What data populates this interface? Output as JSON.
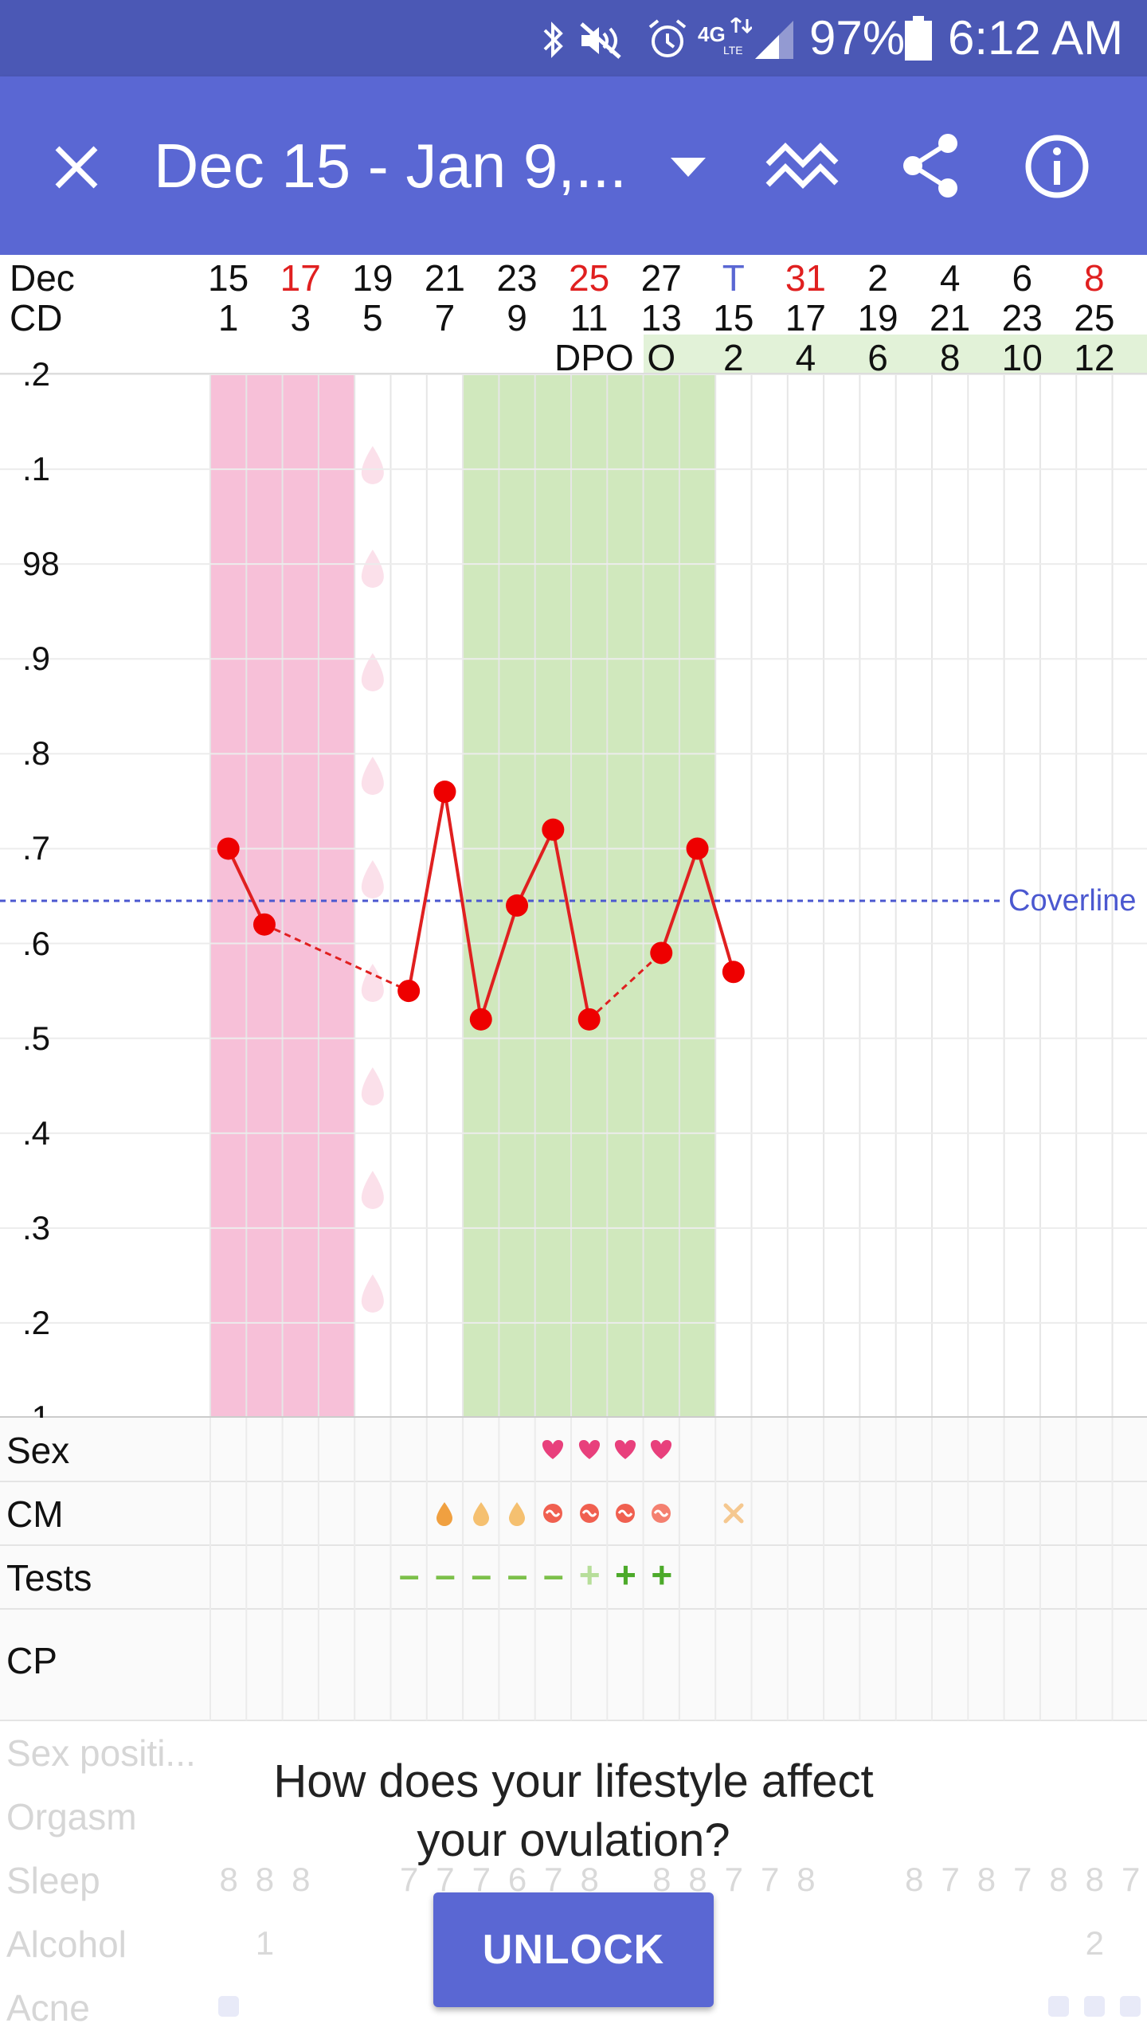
{
  "status_bar": {
    "battery": "97%",
    "time": "6:12 AM",
    "icons": [
      "bluetooth-icon",
      "mute-icon",
      "alarm-icon",
      "4g-lte-icon",
      "signal-icon",
      "battery-icon"
    ]
  },
  "app_bar": {
    "title": "Dec 15 - Jan 9,...",
    "close_icon": "close-icon",
    "dropdown_icon": "chevron-down-icon",
    "chart_icon": "chart-toggle-icon",
    "share_icon": "share-icon",
    "info_icon": "info-icon"
  },
  "header": {
    "month_label": "Dec",
    "cd_label": "CD",
    "dpo_label": "DPO",
    "dates": [
      {
        "day": "15",
        "color": "#111111"
      },
      {
        "day": "17",
        "color": "#e02020"
      },
      {
        "day": "19",
        "color": "#111111"
      },
      {
        "day": "21",
        "color": "#111111"
      },
      {
        "day": "23",
        "color": "#111111"
      },
      {
        "day": "25",
        "color": "#e02020"
      },
      {
        "day": "27",
        "color": "#111111"
      },
      {
        "day": "T",
        "color": "#5a67d3"
      },
      {
        "day": "31",
        "color": "#e02020"
      },
      {
        "day": "2",
        "color": "#111111"
      },
      {
        "day": "4",
        "color": "#111111"
      },
      {
        "day": "6",
        "color": "#111111"
      },
      {
        "day": "8",
        "color": "#e02020"
      }
    ],
    "cycle_days": [
      "1",
      "3",
      "5",
      "7",
      "9",
      "11",
      "13",
      "15",
      "17",
      "19",
      "21",
      "23",
      "25"
    ],
    "dpo_values": [
      "O",
      "2",
      "4",
      "6",
      "8",
      "10",
      "12"
    ]
  },
  "chart_data": {
    "type": "line",
    "ylabel_ticks": [
      ".2",
      ".1",
      "98",
      ".9",
      ".8",
      ".7",
      ".6",
      ".5",
      ".4",
      ".3",
      ".2",
      ".1"
    ],
    "ylim": [
      97.1,
      98.2
    ],
    "x_cycle_days": [
      1,
      2,
      6,
      7,
      8,
      9,
      10,
      11,
      13,
      14,
      15
    ],
    "y_temps": [
      97.7,
      97.62,
      97.55,
      97.76,
      97.52,
      97.64,
      97.72,
      97.52,
      97.59,
      97.7,
      97.57
    ],
    "dashed_after_index": [
      1,
      7
    ],
    "coverline": {
      "value": 97.645,
      "label": "Coverline"
    },
    "period_days": [
      1,
      4
    ],
    "spotting_days": [
      5,
      5
    ],
    "fertile_days": [
      8,
      14
    ],
    "colors": {
      "line": "#e02020",
      "period": "#f7c0d8",
      "fertile": "#d0e8bd",
      "coverline": "#4b58d0",
      "dpo_band": "#e2f2d8"
    }
  },
  "rows": {
    "sex": {
      "label": "Sex",
      "icon": "heart-icon",
      "days": [
        10,
        11,
        12,
        13
      ]
    },
    "cm": {
      "label": "CM",
      "icons": [
        {
          "day": 7,
          "icon": "drop-icon",
          "color": "#f0a040"
        },
        {
          "day": 8,
          "icon": "drop-icon",
          "color": "#f5c070"
        },
        {
          "day": 9,
          "icon": "drop-icon",
          "color": "#f5c070"
        },
        {
          "day": 10,
          "icon": "eggwhite-icon",
          "color": "#f06050"
        },
        {
          "day": 11,
          "icon": "eggwhite-icon",
          "color": "#f06050"
        },
        {
          "day": 12,
          "icon": "eggwhite-icon",
          "color": "#f06050"
        },
        {
          "day": 13,
          "icon": "eggwhite-icon",
          "color": "#f48070"
        },
        {
          "day": 15,
          "icon": "cross-icon",
          "color": "#f5c890"
        }
      ]
    },
    "tests": {
      "label": "Tests",
      "marks": [
        {
          "day": 6,
          "sym": "–",
          "color": "#7cc04a"
        },
        {
          "day": 7,
          "sym": "–",
          "color": "#7cc04a"
        },
        {
          "day": 8,
          "sym": "–",
          "color": "#7cc04a"
        },
        {
          "day": 9,
          "sym": "–",
          "color": "#7cc04a"
        },
        {
          "day": 10,
          "sym": "–",
          "color": "#7cc04a"
        },
        {
          "day": 11,
          "sym": "+",
          "color": "#b7de9a"
        },
        {
          "day": 12,
          "sym": "+",
          "color": "#4caa2a"
        },
        {
          "day": 13,
          "sym": "+",
          "color": "#4caa2a"
        }
      ]
    },
    "cp": {
      "label": "CP"
    },
    "locked": [
      {
        "label": "Sex positi..."
      },
      {
        "label": "Orgasm"
      },
      {
        "label": "Sleep",
        "values": [
          {
            "day": 1,
            "v": "8"
          },
          {
            "day": 2,
            "v": "8"
          },
          {
            "day": 3,
            "v": "8"
          },
          {
            "day": 6,
            "v": "7"
          },
          {
            "day": 7,
            "v": "7"
          },
          {
            "day": 8,
            "v": "7"
          },
          {
            "day": 9,
            "v": "6"
          },
          {
            "day": 10,
            "v": "7"
          },
          {
            "day": 11,
            "v": "8"
          },
          {
            "day": 13,
            "v": "8"
          },
          {
            "day": 14,
            "v": "8"
          },
          {
            "day": 15,
            "v": "7"
          },
          {
            "day": 16,
            "v": "7"
          },
          {
            "day": 17,
            "v": "8"
          },
          {
            "day": 20,
            "v": "8"
          },
          {
            "day": 21,
            "v": "7"
          },
          {
            "day": 22,
            "v": "8"
          },
          {
            "day": 23,
            "v": "7"
          },
          {
            "day": 24,
            "v": "8"
          },
          {
            "day": 25,
            "v": "8"
          },
          {
            "day": 26,
            "v": "7"
          }
        ]
      },
      {
        "label": "Alcohol",
        "values": [
          {
            "day": 2,
            "v": "1"
          },
          {
            "day": 25,
            "v": "2"
          }
        ]
      },
      {
        "label": "Acne"
      }
    ]
  },
  "promo": {
    "text": "How does your lifestyle affect your ovulation?",
    "button": "UNLOCK"
  }
}
